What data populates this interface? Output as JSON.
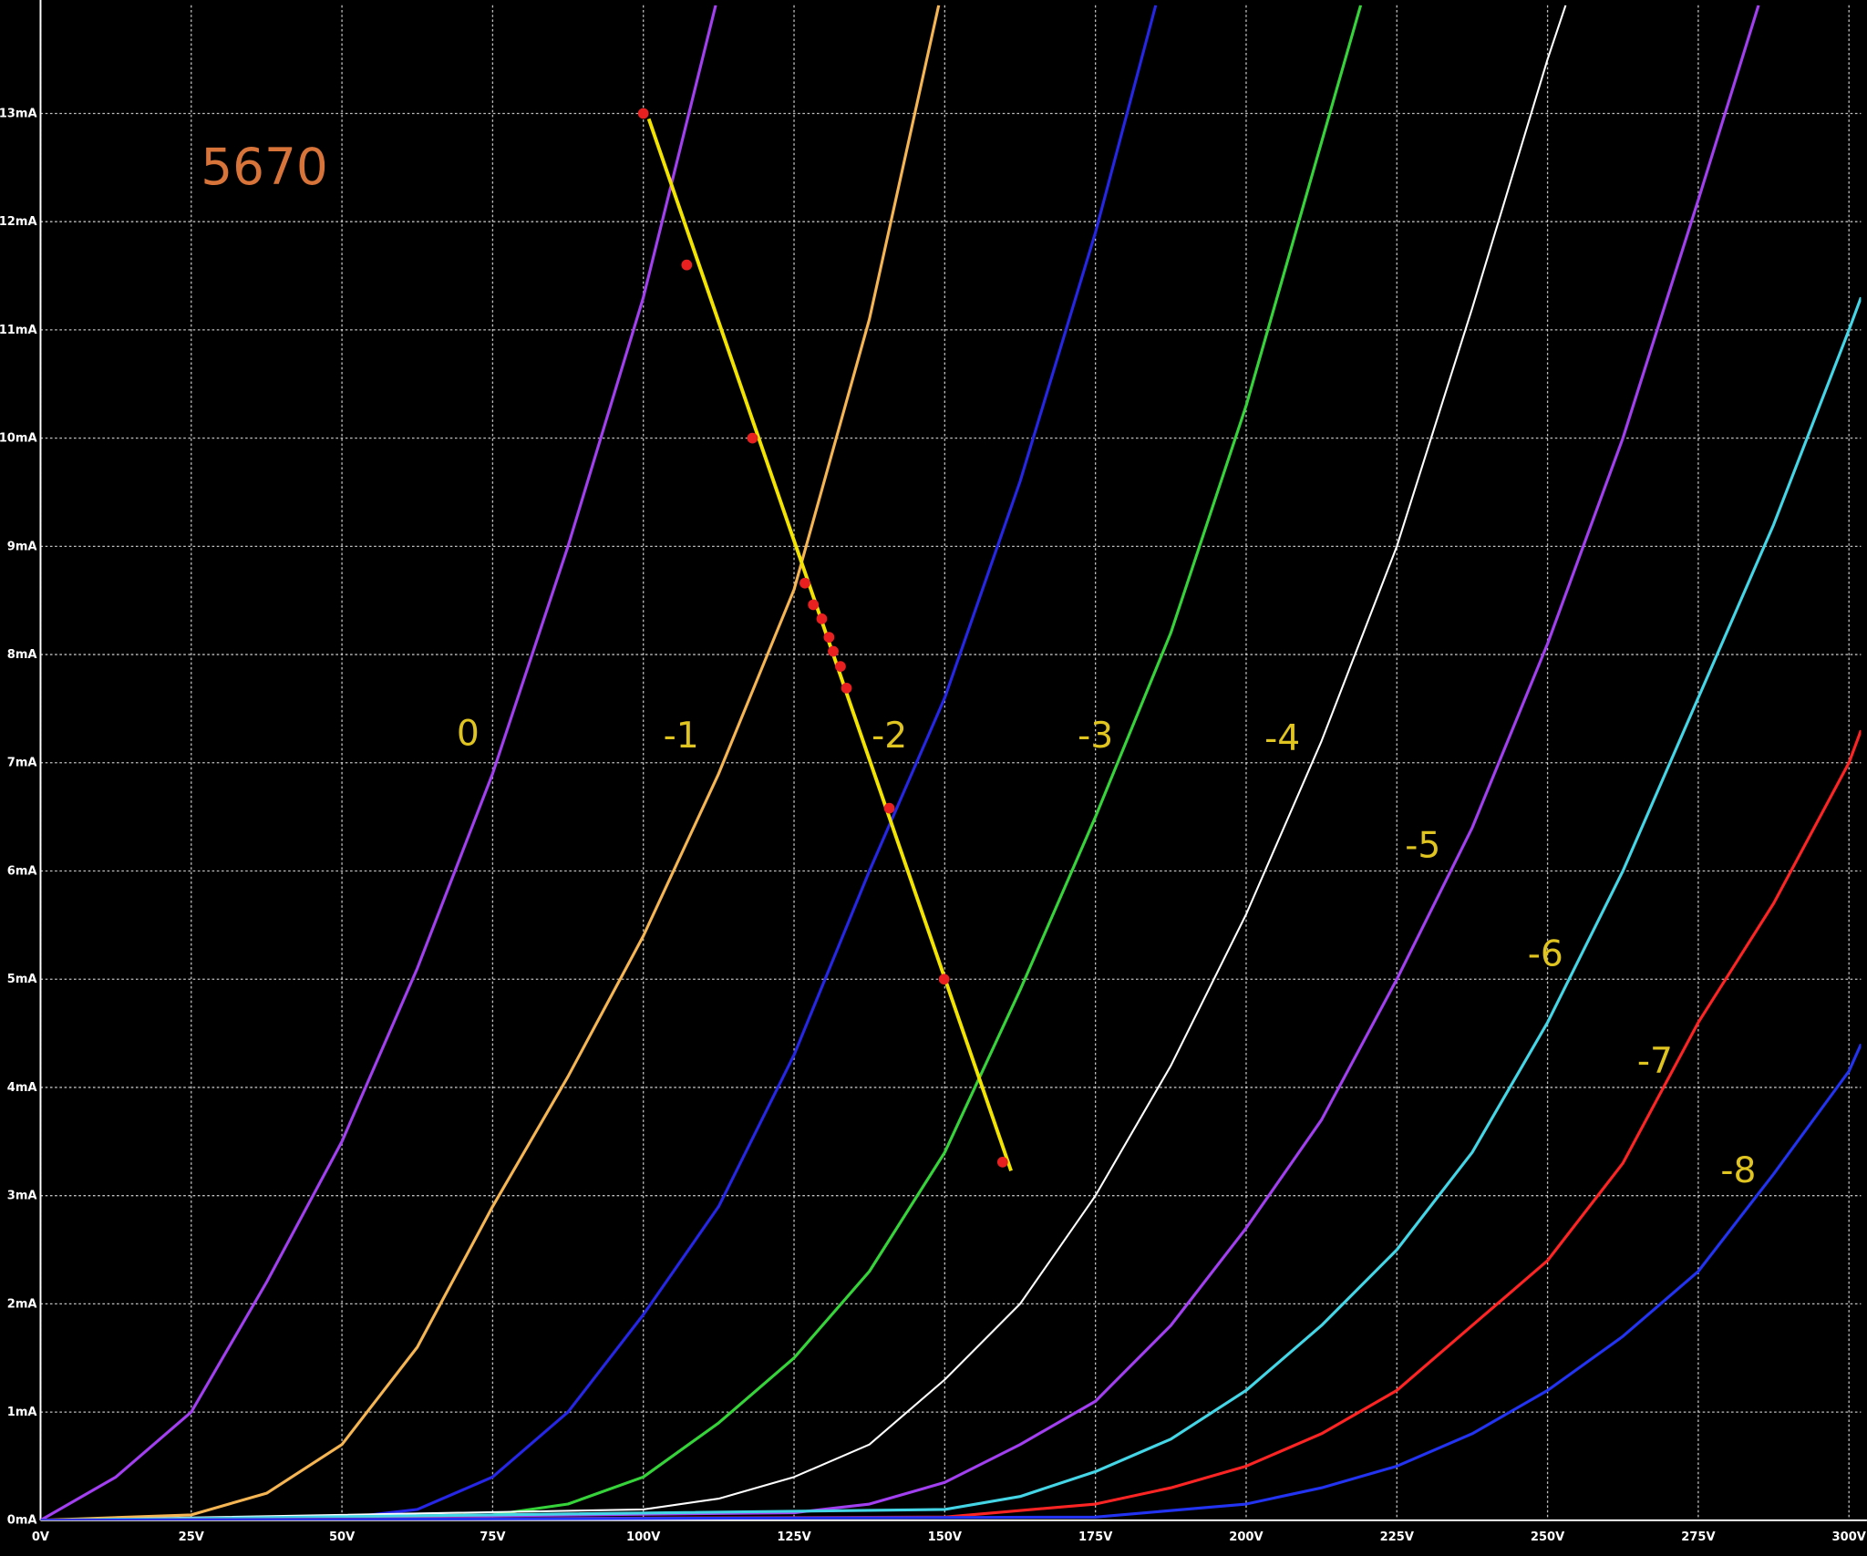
{
  "chart_data": {
    "type": "line",
    "title": "5670",
    "xlim": [
      0,
      302
    ],
    "ylim": [
      0,
      14
    ],
    "xticks": [
      {
        "value": 0,
        "label": "0V"
      },
      {
        "value": 25,
        "label": "25V"
      },
      {
        "value": 50,
        "label": "50V"
      },
      {
        "value": 75,
        "label": "75V"
      },
      {
        "value": 100,
        "label": "100V"
      },
      {
        "value": 125,
        "label": "125V"
      },
      {
        "value": 150,
        "label": "150V"
      },
      {
        "value": 175,
        "label": "175V"
      },
      {
        "value": 200,
        "label": "200V"
      },
      {
        "value": 225,
        "label": "225V"
      },
      {
        "value": 250,
        "label": "250V"
      },
      {
        "value": 275,
        "label": "275V"
      },
      {
        "value": 300,
        "label": "300V"
      }
    ],
    "yticks": [
      {
        "value": 0,
        "label": "0mA"
      },
      {
        "value": 1,
        "label": "1mA"
      },
      {
        "value": 2,
        "label": "2mA"
      },
      {
        "value": 3,
        "label": "3mA"
      },
      {
        "value": 4,
        "label": "4mA"
      },
      {
        "value": 5,
        "label": "5mA"
      },
      {
        "value": 6,
        "label": "6mA"
      },
      {
        "value": 7,
        "label": "7mA"
      },
      {
        "value": 8,
        "label": "8mA"
      },
      {
        "value": 9,
        "label": "9mA"
      },
      {
        "value": 10,
        "label": "10mA"
      },
      {
        "value": 11,
        "label": "11mA"
      },
      {
        "value": 12,
        "label": "12mA"
      },
      {
        "value": 13,
        "label": "13mA"
      }
    ],
    "grid": true,
    "series": [
      {
        "name": "0",
        "color": "#a23ff0",
        "x": [
          0,
          12.5,
          25,
          37.5,
          50,
          62.5,
          75,
          87.5,
          100,
          112
        ],
        "values": [
          0,
          0.4,
          1.0,
          2.2,
          3.5,
          5.1,
          6.9,
          9.0,
          11.3,
          14
        ]
      },
      {
        "name": "-1",
        "color": "#f5b552",
        "x": [
          0,
          25,
          37.5,
          50,
          62.5,
          75,
          87.5,
          100,
          112.5,
          125,
          137.5,
          149
        ],
        "values": [
          0,
          0.05,
          0.25,
          0.7,
          1.6,
          2.9,
          4.1,
          5.4,
          6.9,
          8.6,
          11.1,
          14
        ]
      },
      {
        "name": "-2",
        "color": "#2626e6",
        "x": [
          0,
          50,
          62.5,
          75,
          87.5,
          100,
          112.5,
          125,
          137.5,
          150,
          162.5,
          175,
          185
        ],
        "values": [
          0,
          0.02,
          0.1,
          0.4,
          1.0,
          1.9,
          2.9,
          4.3,
          6.0,
          7.6,
          9.6,
          11.9,
          14
        ]
      },
      {
        "name": "-3",
        "color": "#36d43a",
        "x": [
          0,
          75,
          87.5,
          100,
          112.5,
          125,
          137.5,
          150,
          162.5,
          175,
          187.5,
          200,
          219
        ],
        "values": [
          0,
          0.05,
          0.15,
          0.4,
          0.9,
          1.5,
          2.3,
          3.4,
          4.9,
          6.5,
          8.2,
          10.3,
          14
        ]
      },
      {
        "name": "-4",
        "color": "#ffffff",
        "x": [
          0,
          100,
          112.5,
          125,
          137.5,
          150,
          162.5,
          175,
          187.5,
          200,
          212.5,
          225,
          237.5,
          250,
          253
        ],
        "values": [
          0,
          0.1,
          0.2,
          0.4,
          0.7,
          1.3,
          2.0,
          3.0,
          4.2,
          5.6,
          7.2,
          9.0,
          11.2,
          13.5,
          14
        ]
      },
      {
        "name": "-5",
        "color": "#a23ff0",
        "x": [
          0,
          125,
          137.5,
          150,
          162.5,
          175,
          187.5,
          200,
          212.5,
          225,
          237.5,
          250,
          262.5,
          275,
          285
        ],
        "values": [
          0,
          0.07,
          0.15,
          0.35,
          0.7,
          1.1,
          1.8,
          2.7,
          3.7,
          5.0,
          6.4,
          8.1,
          10.0,
          12.2,
          14
        ]
      },
      {
        "name": "-6",
        "color": "#44d6e6",
        "x": [
          0,
          150,
          162.5,
          175,
          187.5,
          200,
          212.5,
          225,
          237.5,
          250,
          262.5,
          275,
          287.5,
          300,
          302
        ],
        "values": [
          0,
          0.1,
          0.22,
          0.45,
          0.75,
          1.2,
          1.8,
          2.5,
          3.4,
          4.6,
          6.0,
          7.6,
          9.2,
          11.0,
          11.3
        ]
      },
      {
        "name": "-7",
        "color": "#ff2424",
        "x": [
          0,
          150,
          175,
          187.5,
          200,
          212.5,
          225,
          237.5,
          250,
          262.5,
          275,
          287.5,
          300,
          302
        ],
        "values": [
          0,
          0.03,
          0.15,
          0.3,
          0.5,
          0.8,
          1.2,
          1.8,
          2.4,
          3.3,
          4.6,
          5.7,
          7.0,
          7.3
        ]
      },
      {
        "name": "-8",
        "color": "#2233f2",
        "x": [
          0,
          175,
          200,
          212.5,
          225,
          237.5,
          250,
          262.5,
          275,
          287.5,
          300,
          302
        ],
        "values": [
          0,
          0.03,
          0.15,
          0.3,
          0.5,
          0.8,
          1.2,
          1.7,
          2.3,
          3.2,
          4.15,
          4.4
        ]
      }
    ],
    "load_line": {
      "color": "#f2e400",
      "x": [
        100.9,
        161
      ],
      "values": [
        12.95,
        3.23
      ]
    },
    "points": {
      "color": "#e82020",
      "x": [
        100,
        107.2,
        118.1,
        126.8,
        128.2,
        129.6,
        130.8,
        131.5,
        132.7,
        133.7,
        140.8,
        149.9,
        159.6
      ],
      "values": [
        13.0,
        11.6,
        10.0,
        8.66,
        8.46,
        8.33,
        8.16,
        8.03,
        7.89,
        7.69,
        6.58,
        5.0,
        3.31
      ]
    }
  }
}
